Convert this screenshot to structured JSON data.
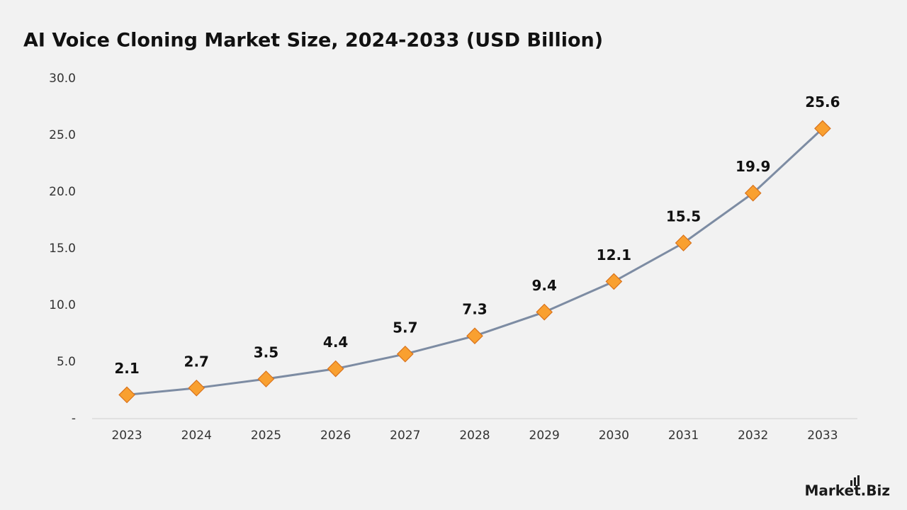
{
  "chart_data": {
    "type": "line",
    "title": "AI Voice Cloning Market Size, 2024-2033 (USD Billion)",
    "categories": [
      "2023",
      "2024",
      "2025",
      "2026",
      "2027",
      "2028",
      "2029",
      "2030",
      "2031",
      "2032",
      "2033"
    ],
    "values": [
      2.1,
      2.7,
      3.5,
      4.4,
      5.7,
      7.3,
      9.4,
      12.1,
      15.5,
      19.9,
      25.6
    ],
    "color": "#7d8ca3",
    "marker_color": "#f9a030",
    "marker_edge_color": "#d9731c",
    "ylim": [
      0,
      30
    ],
    "yticks": [
      {
        "value": 0,
        "label": "-"
      },
      {
        "value": 5,
        "label": "5.0"
      },
      {
        "value": 10,
        "label": "10.0"
      },
      {
        "value": 15,
        "label": "15.0"
      },
      {
        "value": 20,
        "label": "20.0"
      },
      {
        "value": 25,
        "label": "25.0"
      },
      {
        "value": 30,
        "label": "30.0"
      }
    ],
    "grid": false
  },
  "logo_text": "Market.Biz"
}
